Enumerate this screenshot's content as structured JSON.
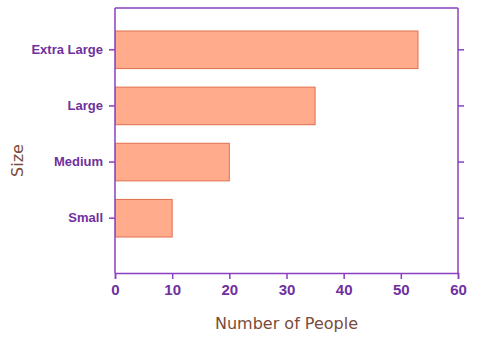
{
  "chart_data": {
    "type": "bar",
    "orientation": "horizontal",
    "categories": [
      "Extra Large",
      "Large",
      "Medium",
      "Small"
    ],
    "values": [
      53,
      35,
      20,
      10
    ],
    "color": "#ffab8c",
    "xlabel": "Number of People",
    "ylabel": "Size",
    "xlim": [
      0,
      60
    ],
    "xticks": [
      0,
      10,
      20,
      30,
      40,
      50,
      60
    ],
    "grid": false
  }
}
